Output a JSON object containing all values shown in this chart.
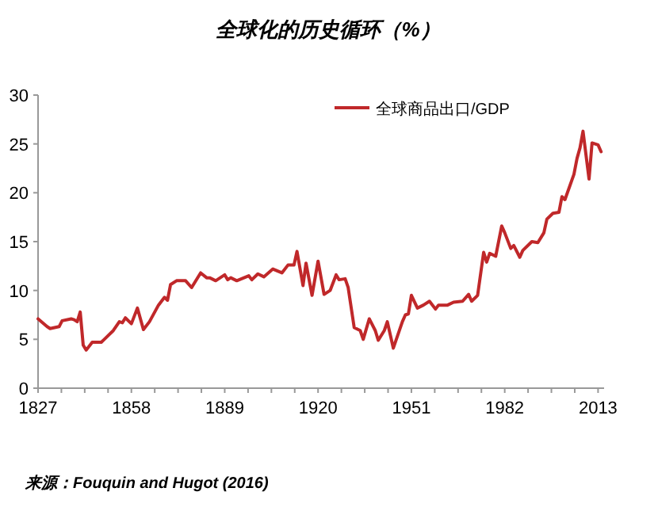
{
  "chart_data": {
    "type": "line",
    "title": "全球化的历史循环（%）",
    "annotations": [
      "来源：Fouquin and Hugot (2016)"
    ],
    "legend": "top right",
    "xlim": [
      1827,
      2015
    ],
    "ylim": [
      0,
      30
    ],
    "xticks": [
      1827,
      {
        "value": 1834.75,
        "label": null
      },
      {
        "value": 1842.5,
        "label": null
      },
      {
        "value": 1850.25,
        "label": null
      },
      1858,
      {
        "value": 1865.75,
        "label": null
      },
      {
        "value": 1873.5,
        "label": null
      },
      {
        "value": 1881.25,
        "label": null
      },
      1889,
      {
        "value": 1896.75,
        "label": null
      },
      {
        "value": 1904.5,
        "label": null
      },
      {
        "value": 1912.25,
        "label": null
      },
      1920,
      {
        "value": 1927.75,
        "label": null
      },
      {
        "value": 1935.5,
        "label": null
      },
      {
        "value": 1943.25,
        "label": null
      },
      1951,
      {
        "value": 1958.75,
        "label": null
      },
      {
        "value": 1966.5,
        "label": null
      },
      {
        "value": 1974.25,
        "label": null
      },
      1982,
      {
        "value": 1989.75,
        "label": null
      },
      {
        "value": 1997.5,
        "label": null
      },
      {
        "value": 2005.25,
        "label": null
      },
      2013
    ],
    "yticks": [
      0,
      5,
      10,
      15,
      20,
      25,
      30
    ],
    "series": [
      {
        "name": "全球商品出口/GDP",
        "color": "#c0282a",
        "x": [
          1827,
          1830,
          1831,
          1834,
          1835,
          1838,
          1839,
          1840,
          1841,
          1842,
          1843,
          1845,
          1848,
          1849,
          1852,
          1854,
          1855,
          1856,
          1858,
          1860,
          1862,
          1864,
          1867,
          1869,
          1870,
          1871,
          1873,
          1876,
          1878,
          1881,
          1883,
          1884,
          1886,
          1889,
          1890,
          1891,
          1893,
          1897,
          1898,
          1900,
          1902,
          1905,
          1908,
          1910,
          1912,
          1913,
          1915,
          1916,
          1918,
          1920,
          1922,
          1924,
          1926,
          1927,
          1929,
          1930,
          1932,
          1934,
          1935,
          1937,
          1939,
          1940,
          1942,
          1943,
          1945,
          1948,
          1949,
          1950,
          1951,
          1953,
          1955,
          1957,
          1959,
          1960,
          1963,
          1965,
          1968,
          1970,
          1971,
          1973,
          1975,
          1976,
          1977,
          1979,
          1981,
          1982,
          1984,
          1985,
          1987,
          1988,
          1991,
          1993,
          1995,
          1996,
          1998,
          2000,
          2001,
          2002,
          2005,
          2006,
          2007,
          2008,
          2010,
          2011,
          2013,
          2014
        ],
        "values": [
          7.1,
          6.3,
          6.1,
          6.3,
          6.9,
          7.1,
          7.0,
          6.8,
          7.8,
          4.4,
          3.9,
          4.7,
          4.7,
          5.0,
          5.9,
          6.8,
          6.7,
          7.2,
          6.6,
          8.2,
          6.0,
          6.8,
          8.5,
          9.3,
          9.0,
          10.6,
          11.0,
          11.0,
          10.3,
          11.8,
          11.3,
          11.3,
          11.0,
          11.6,
          11.1,
          11.3,
          11.0,
          11.5,
          11.1,
          11.7,
          11.4,
          12.2,
          11.8,
          12.6,
          12.6,
          14.0,
          10.5,
          12.8,
          9.5,
          13.0,
          9.6,
          10.0,
          11.6,
          11.1,
          11.2,
          10.3,
          6.2,
          5.9,
          5.0,
          7.1,
          5.9,
          4.9,
          5.9,
          6.8,
          4.1,
          6.8,
          7.5,
          7.6,
          9.5,
          8.2,
          8.5,
          8.9,
          8.1,
          8.5,
          8.5,
          8.8,
          8.9,
          9.6,
          8.9,
          9.5,
          13.9,
          12.9,
          13.8,
          13.5,
          16.6,
          15.9,
          14.3,
          14.6,
          13.4,
          14.1,
          15.0,
          14.9,
          15.9,
          17.3,
          17.9,
          18.0,
          19.6,
          19.3,
          21.9,
          23.5,
          24.6,
          26.3,
          21.4,
          25.1,
          24.9,
          24.2
        ]
      }
    ]
  }
}
